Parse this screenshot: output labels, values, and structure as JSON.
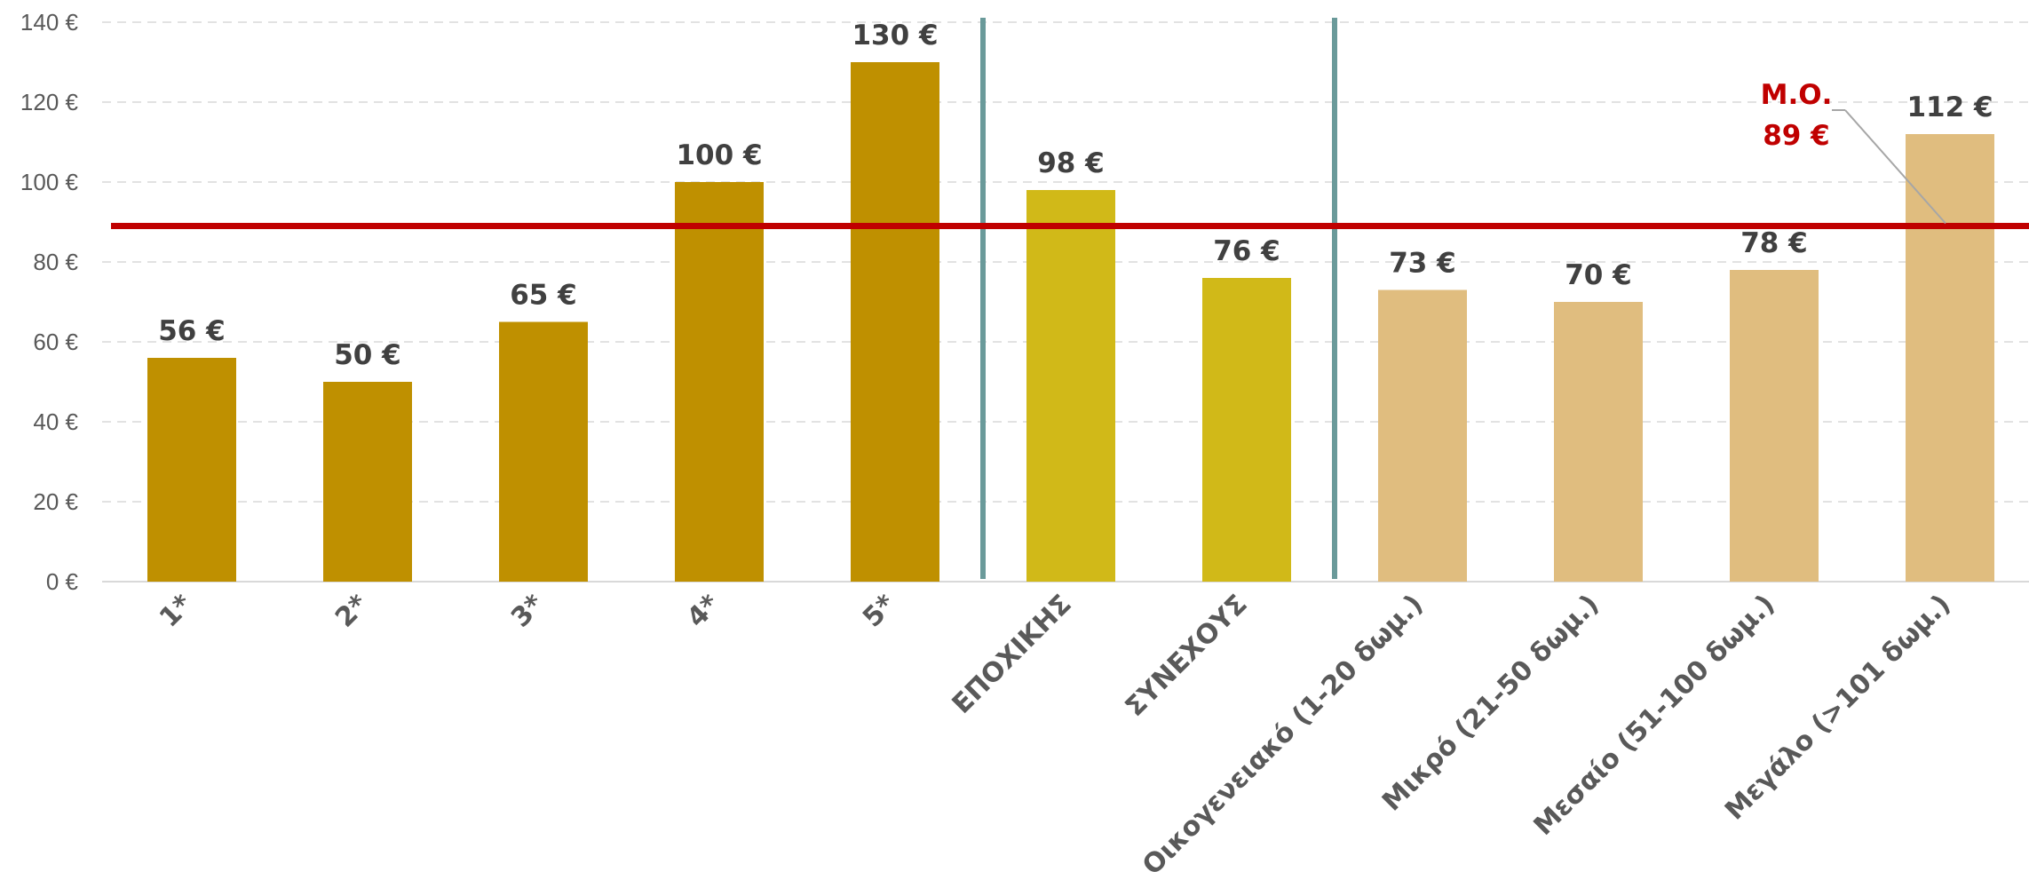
{
  "chart_data": {
    "type": "bar",
    "categories": [
      "1*",
      "2*",
      "3*",
      "4*",
      "5*",
      "ΕΠΟΧΙΚΗΣ",
      "ΣΥΝΕΧΟΥΣ",
      "Οικογενειακό (1-20 δωμ.)",
      "Μικρό (21-50 δωμ.)",
      "Μεσαίο (51-100 δωμ.)",
      "Μεγάλο (>101 δωμ.)"
    ],
    "values": [
      56,
      50,
      65,
      100,
      130,
      98,
      76,
      73,
      70,
      78,
      112
    ],
    "data_labels": [
      "56 €",
      "50 €",
      "65 €",
      "100 €",
      "130 €",
      "98 €",
      "76 €",
      "73 €",
      "70 €",
      "78 €",
      "112 €"
    ],
    "bar_colors": [
      "#bf9000",
      "#bf9000",
      "#bf9000",
      "#bf9000",
      "#bf9000",
      "#d1b918",
      "#d1b918",
      "#e0bd7f",
      "#e0bd7f",
      "#e0bd7f",
      "#e0bd7f"
    ],
    "y_ticks": [
      "0 €",
      "20 €",
      "40 €",
      "60 €",
      "80 €",
      "100 €",
      "120 €",
      "140 €"
    ],
    "ylim": [
      0,
      140
    ],
    "grid": true,
    "average": {
      "value": 89,
      "label_line1": "Μ.Ο.",
      "label_line2": "89 €",
      "color": "#c00000"
    },
    "separator_color": "#6a9a9a",
    "separators_after_index": [
      4,
      6
    ]
  }
}
